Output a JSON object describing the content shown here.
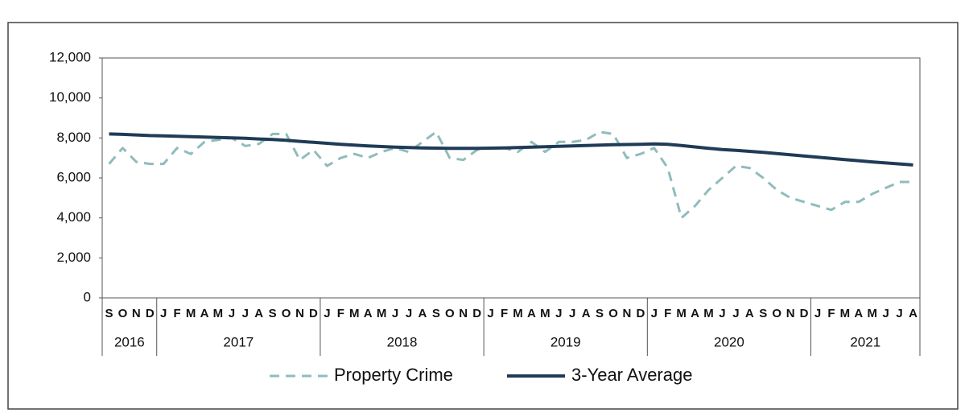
{
  "chart_data": {
    "type": "line",
    "categories": [
      "S",
      "O",
      "N",
      "D",
      "J",
      "F",
      "M",
      "A",
      "M",
      "J",
      "J",
      "A",
      "S",
      "O",
      "N",
      "D",
      "J",
      "F",
      "M",
      "A",
      "M",
      "J",
      "J",
      "A",
      "S",
      "O",
      "N",
      "D",
      "J",
      "F",
      "M",
      "A",
      "M",
      "J",
      "J",
      "A",
      "S",
      "O",
      "N",
      "D",
      "J",
      "F",
      "M",
      "A",
      "M",
      "J",
      "J",
      "A",
      "S",
      "O",
      "N",
      "D",
      "J",
      "F",
      "M",
      "A",
      "M",
      "J",
      "J",
      "A"
    ],
    "x_groups": [
      "2016",
      "2017",
      "2018",
      "2019",
      "2020",
      "2021"
    ],
    "series": [
      {
        "name": "Property Crime",
        "color": "#8fbcbc",
        "dashed": true,
        "values": [
          6700,
          7500,
          6800,
          6700,
          6700,
          7500,
          7200,
          7800,
          7900,
          8000,
          7600,
          7700,
          8200,
          8200,
          6900,
          7400,
          6600,
          7000,
          7200,
          7000,
          7300,
          7500,
          7300,
          7800,
          8300,
          7000,
          6900,
          7400,
          7500,
          7500,
          7300,
          7800,
          7300,
          7800,
          7800,
          7900,
          8300,
          8200,
          7000,
          7200,
          7500,
          6500,
          4000,
          4600,
          5400,
          6000,
          6600,
          6500,
          6000,
          5400,
          5000,
          4800,
          4600,
          4400,
          4800,
          4800,
          5200,
          5500,
          5800,
          5800
        ]
      },
      {
        "name": "3-Year Average",
        "color": "#1f3b57",
        "dashed": false,
        "values": [
          8200,
          8180,
          8150,
          8120,
          8100,
          8080,
          8060,
          8040,
          8020,
          8000,
          7980,
          7950,
          7920,
          7880,
          7830,
          7780,
          7730,
          7680,
          7640,
          7600,
          7570,
          7540,
          7520,
          7500,
          7490,
          7480,
          7480,
          7480,
          7490,
          7500,
          7520,
          7540,
          7560,
          7580,
          7600,
          7620,
          7640,
          7660,
          7670,
          7680,
          7700,
          7680,
          7620,
          7550,
          7480,
          7420,
          7380,
          7330,
          7280,
          7220,
          7160,
          7100,
          7040,
          6980,
          6920,
          6860,
          6800,
          6750,
          6700,
          6650
        ]
      }
    ],
    "ylim": [
      0,
      12000
    ],
    "yticks": [
      0,
      {
        "value": 2000,
        "label": "2,000"
      },
      {
        "value": 4000,
        "label": "4,000"
      },
      {
        "value": 6000,
        "label": "6,000"
      },
      {
        "value": 8000,
        "label": "8,000"
      },
      {
        "value": 10000,
        "label": "10,000"
      },
      {
        "value": 12000,
        "label": "12,000"
      }
    ],
    "grid": false
  }
}
